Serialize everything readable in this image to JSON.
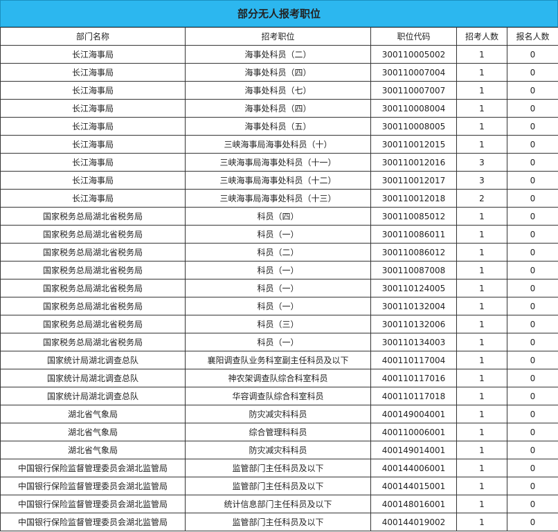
{
  "title": "部分无人报考职位",
  "colors": {
    "title_bar": "#2cb7ef"
  },
  "columns": [
    "部门名称",
    "招考职位",
    "职位代码",
    "招考人数",
    "报名人数"
  ],
  "rows": [
    [
      "长江海事局",
      "海事处科员（二）",
      "300110005002",
      "1",
      "0"
    ],
    [
      "长江海事局",
      "海事处科员（四）",
      "300110007004",
      "1",
      "0"
    ],
    [
      "长江海事局",
      "海事处科员（七）",
      "300110007007",
      "1",
      "0"
    ],
    [
      "长江海事局",
      "海事处科员（四）",
      "300110008004",
      "1",
      "0"
    ],
    [
      "长江海事局",
      "海事处科员（五）",
      "300110008005",
      "1",
      "0"
    ],
    [
      "长江海事局",
      "三峡海事局海事处科员（十）",
      "300110012015",
      "1",
      "0"
    ],
    [
      "长江海事局",
      "三峡海事局海事处科员（十一）",
      "300110012016",
      "3",
      "0"
    ],
    [
      "长江海事局",
      "三峡海事局海事处科员（十二）",
      "300110012017",
      "3",
      "0"
    ],
    [
      "长江海事局",
      "三峡海事局海事处科员（十三）",
      "300110012018",
      "2",
      "0"
    ],
    [
      "国家税务总局湖北省税务局",
      "科员（四）",
      "300110085012",
      "1",
      "0"
    ],
    [
      "国家税务总局湖北省税务局",
      "科员（一）",
      "300110086011",
      "1",
      "0"
    ],
    [
      "国家税务总局湖北省税务局",
      "科员（二）",
      "300110086012",
      "1",
      "0"
    ],
    [
      "国家税务总局湖北省税务局",
      "科员（一）",
      "300110087008",
      "1",
      "0"
    ],
    [
      "国家税务总局湖北省税务局",
      "科员（一）",
      "300110124005",
      "1",
      "0"
    ],
    [
      "国家税务总局湖北省税务局",
      "科员（一）",
      "300110132004",
      "1",
      "0"
    ],
    [
      "国家税务总局湖北省税务局",
      "科员（三）",
      "300110132006",
      "1",
      "0"
    ],
    [
      "国家税务总局湖北省税务局",
      "科员（一）",
      "300110134003",
      "1",
      "0"
    ],
    [
      "国家统计局湖北调查总队",
      "襄阳调查队业务科室副主任科员及以下",
      "400110117004",
      "1",
      "0"
    ],
    [
      "国家统计局湖北调查总队",
      "神农架调查队综合科室科员",
      "400110117016",
      "1",
      "0"
    ],
    [
      "国家统计局湖北调查总队",
      "华容调查队综合科室科员",
      "400110117018",
      "1",
      "0"
    ],
    [
      "湖北省气象局",
      "防灾减灾科科员",
      "400149004001",
      "1",
      "0"
    ],
    [
      "湖北省气象局",
      "综合管理科科员",
      "400110006001",
      "1",
      "0"
    ],
    [
      "湖北省气象局",
      "防灾减灾科科员",
      "400149014001",
      "1",
      "0"
    ],
    [
      "中国银行保险监督管理委员会湖北监管局",
      "监管部门主任科员及以下",
      "400144006001",
      "1",
      "0"
    ],
    [
      "中国银行保险监督管理委员会湖北监管局",
      "监管部门主任科员及以下",
      "400144015001",
      "1",
      "0"
    ],
    [
      "中国银行保险监督管理委员会湖北监管局",
      "统计信息部门主任科员及以下",
      "400148016001",
      "1",
      "0"
    ],
    [
      "中国银行保险监督管理委员会湖北监管局",
      "监管部门主任科员及以下",
      "400144019002",
      "1",
      "0"
    ]
  ]
}
